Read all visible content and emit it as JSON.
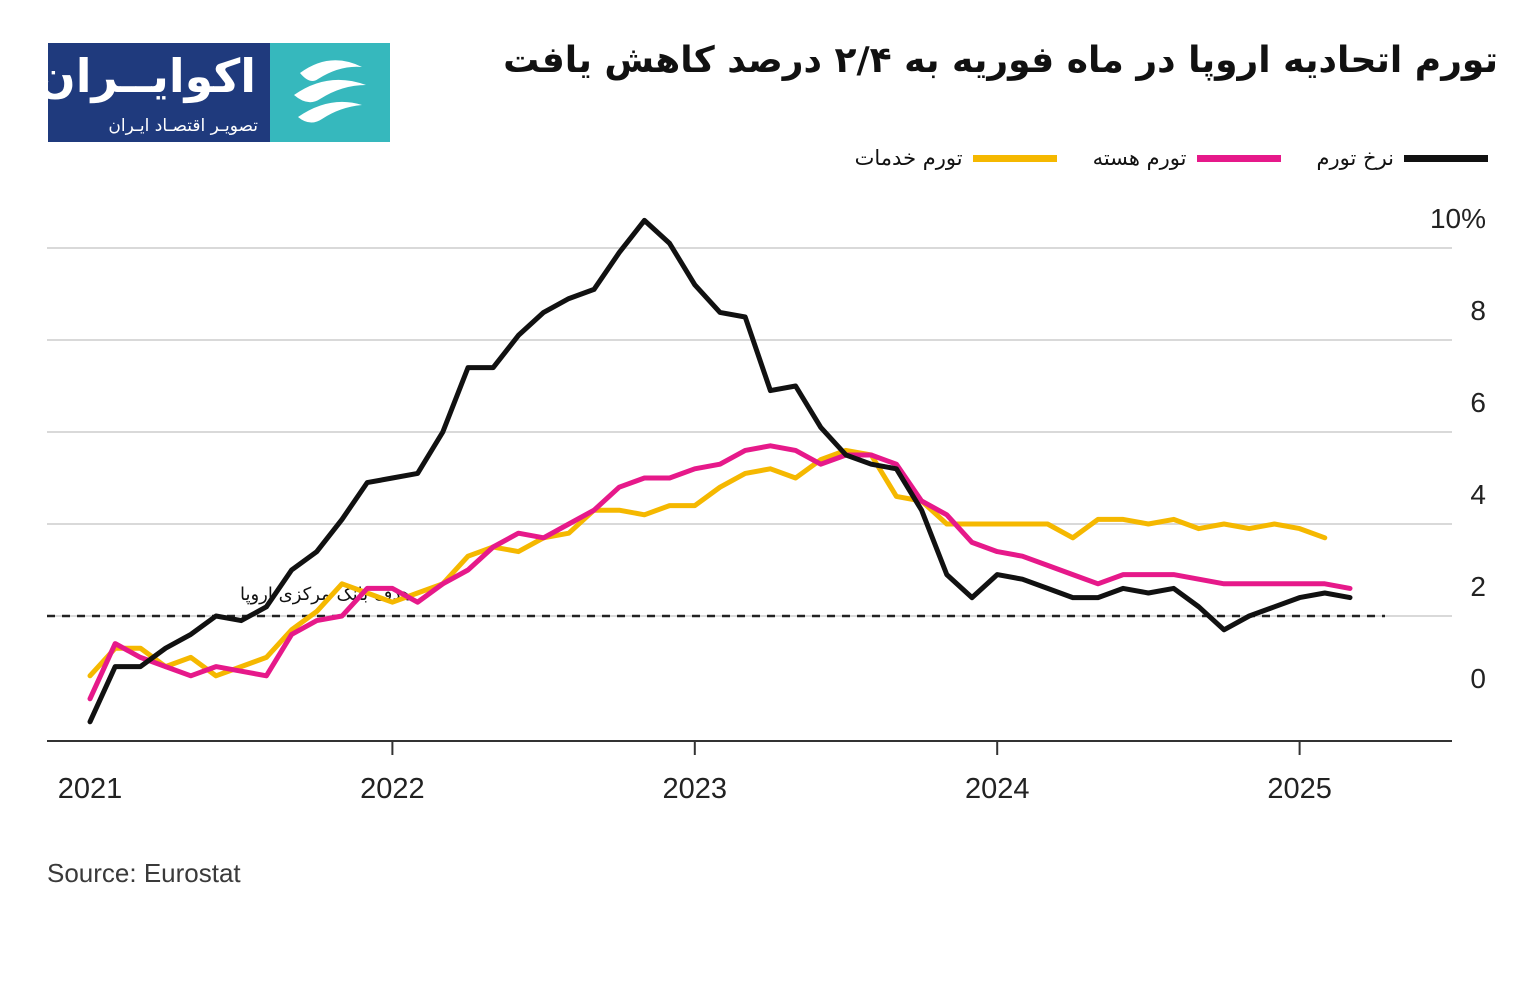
{
  "header": {
    "title": "تورم  اتحادیه اروپا در ماه فوریه به ۲/۴ درصد کاهش یافت",
    "logo": {
      "brand": "اکوایــران",
      "tagline": "تصویـر اقتصـاد ایـران"
    }
  },
  "source": "Source: Eurostat",
  "colors": {
    "headline": "#111111",
    "core": "#e6198a",
    "services": "#f5b800",
    "grid": "#d9d9d9",
    "logo_dark": "#1f3a7d",
    "logo_light": "#36b8bd"
  },
  "chart_data": {
    "type": "line",
    "ylim": [
      -0.7,
      10
    ],
    "yticks": [
      0,
      2,
      4,
      6,
      8,
      10
    ],
    "ytick_labels": [
      "0",
      "2",
      "4",
      "6",
      "8",
      "10%"
    ],
    "x_tick_labels": [
      "2021",
      "2022",
      "2023",
      "2024",
      "2025"
    ],
    "grid": true,
    "legend_position": "top-right",
    "reference_line": {
      "label": "هدف بانک مرکزی اروپا",
      "value": 2,
      "style": "dashed"
    },
    "series": [
      {
        "key": "headline",
        "name": "نرخ تورم",
        "color": "#111111",
        "start": "2021-01",
        "values": [
          -0.3,
          0.9,
          0.9,
          1.3,
          1.6,
          2.0,
          1.9,
          2.2,
          3.0,
          3.4,
          4.1,
          4.9,
          5.0,
          5.1,
          6.0,
          7.4,
          7.4,
          8.1,
          8.6,
          8.9,
          9.1,
          9.9,
          10.6,
          10.1,
          9.2,
          8.6,
          8.5,
          6.9,
          7.0,
          6.1,
          5.5,
          5.3,
          5.2,
          4.3,
          2.9,
          2.4,
          2.9,
          2.8,
          2.6,
          2.4,
          2.4,
          2.6,
          2.5,
          2.6,
          2.2,
          1.7,
          2.0,
          2.2,
          2.4,
          2.5,
          2.4
        ]
      },
      {
        "key": "core",
        "name": "تورم هسته",
        "color": "#e6198a",
        "start": "2021-01",
        "values": [
          0.2,
          1.4,
          1.1,
          0.9,
          0.7,
          0.9,
          0.8,
          0.7,
          1.6,
          1.9,
          2.0,
          2.6,
          2.6,
          2.3,
          2.7,
          3.0,
          3.5,
          3.8,
          3.7,
          4.0,
          4.3,
          4.8,
          5.0,
          5.0,
          5.2,
          5.3,
          5.6,
          5.7,
          5.6,
          5.3,
          5.5,
          5.5,
          5.3,
          4.5,
          4.2,
          3.6,
          3.4,
          3.3,
          3.1,
          2.9,
          2.7,
          2.9,
          2.9,
          2.9,
          2.8,
          2.7,
          2.7,
          2.7,
          2.7,
          2.7,
          2.6
        ]
      },
      {
        "key": "services",
        "name": "تورم خدمات",
        "color": "#f5b800",
        "start": "2021-01",
        "values": [
          0.7,
          1.3,
          1.3,
          0.9,
          1.1,
          0.7,
          0.9,
          1.1,
          1.7,
          2.1,
          2.7,
          2.5,
          2.3,
          2.5,
          2.7,
          3.3,
          3.5,
          3.4,
          3.7,
          3.8,
          4.3,
          4.3,
          4.2,
          4.4,
          4.4,
          4.8,
          5.1,
          5.2,
          5.0,
          5.4,
          5.6,
          5.5,
          4.6,
          4.5,
          4.0,
          4.0,
          4.0,
          4.0,
          4.0,
          3.7,
          4.1,
          4.1,
          4.0,
          4.1,
          3.9,
          4.0,
          3.9,
          4.0,
          3.9,
          3.7
        ]
      }
    ]
  }
}
